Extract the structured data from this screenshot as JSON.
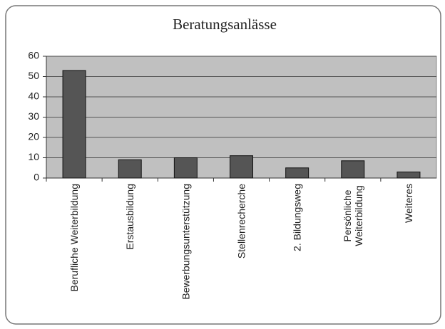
{
  "chart_data": {
    "type": "bar",
    "title": "Beratungsanlässe",
    "categories": [
      "Berufliche Weiterbildung",
      "Erstausbildung",
      "Bewerbungsunterstützung",
      "Stellenrecherche",
      "2. Bildungsweg",
      "Persönliche Weiterbildung",
      "Weiteres"
    ],
    "values": [
      53,
      9,
      10,
      11,
      5,
      8.5,
      3
    ],
    "color": "#555555",
    "plot_background": "#c0c0c0",
    "ylim": [
      0,
      60
    ],
    "yticks": [
      0,
      10,
      20,
      30,
      40,
      50,
      60
    ],
    "grid": true
  }
}
